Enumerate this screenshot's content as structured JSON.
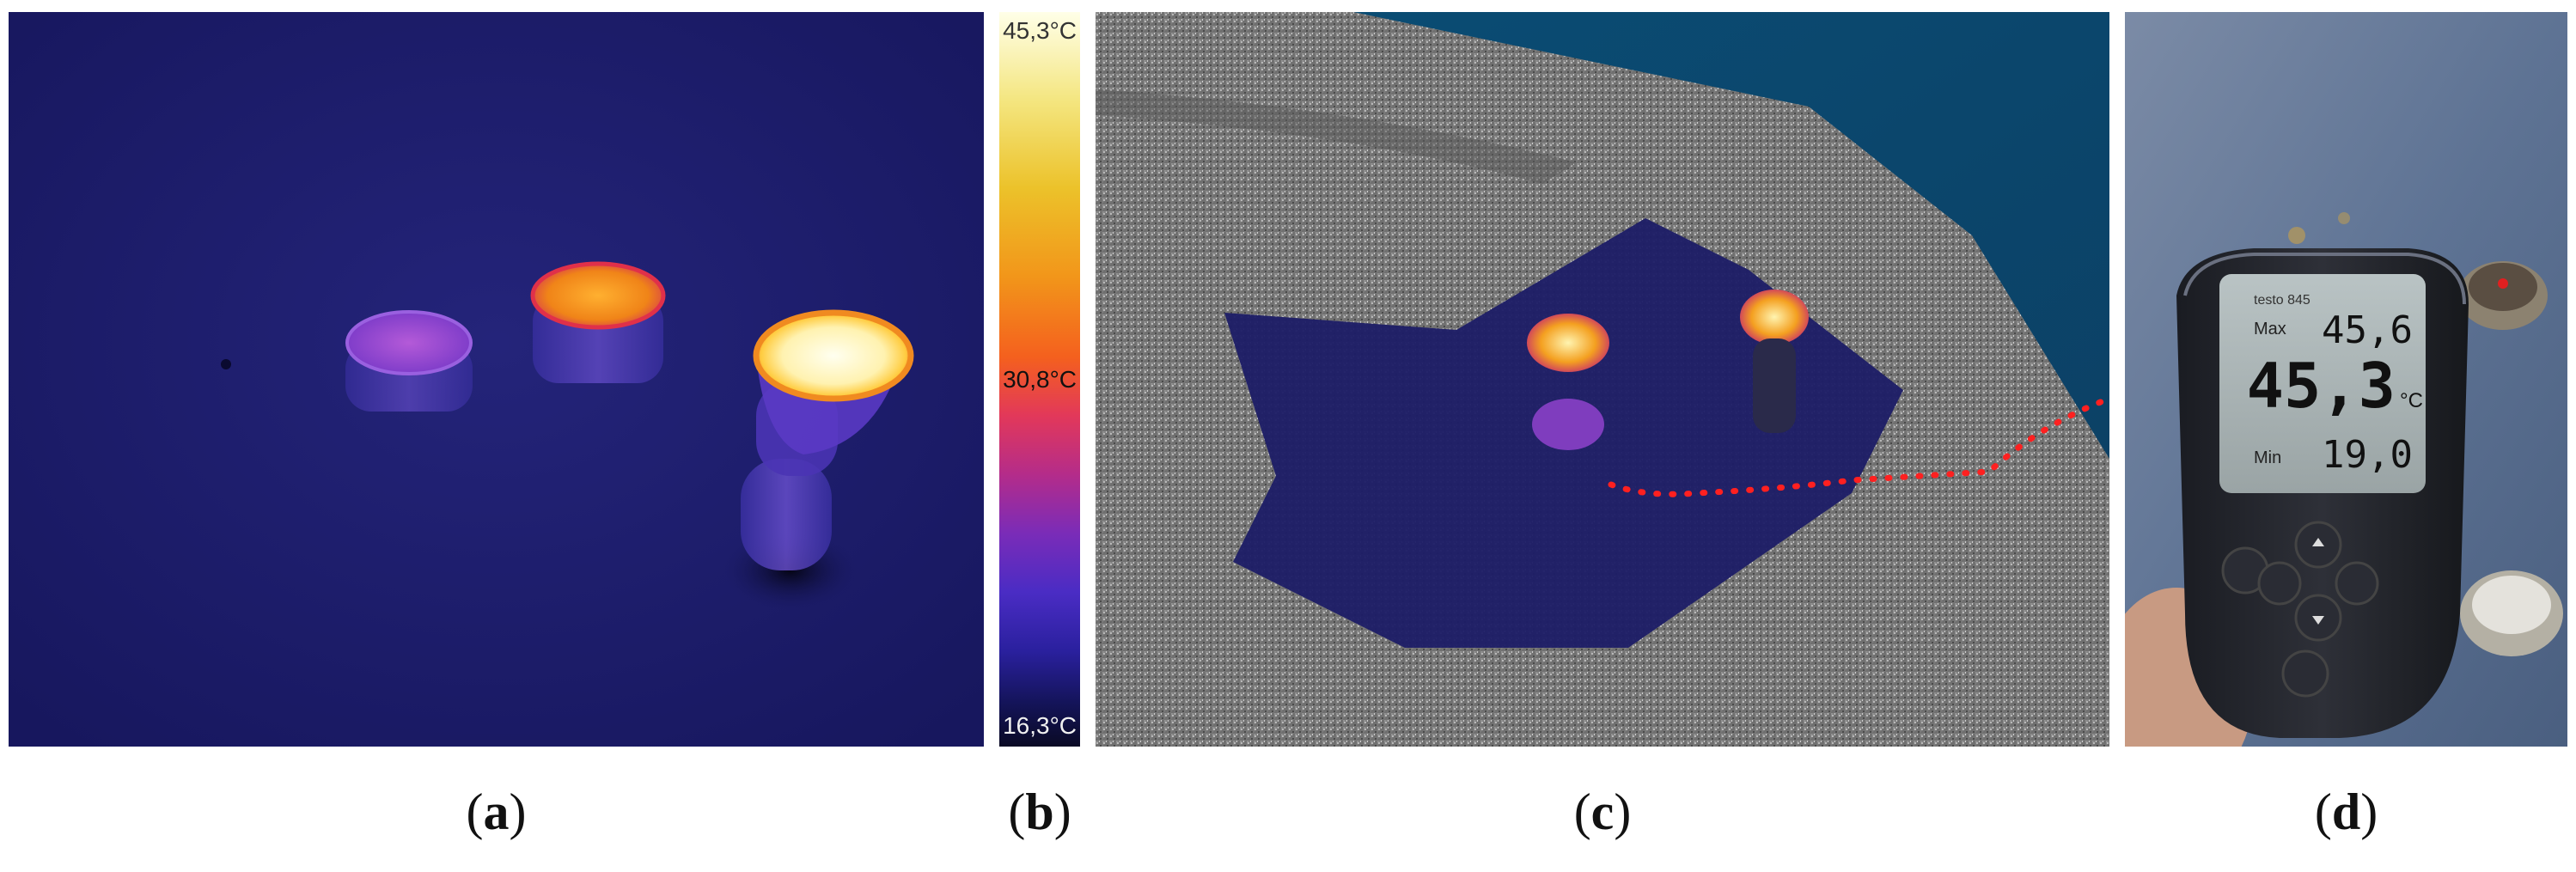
{
  "panels": {
    "a": {
      "label": "a",
      "icon": "thermal-image"
    },
    "b": {
      "label": "b",
      "scale": {
        "max": "45,3°C",
        "mid": "30,8°C",
        "min": "16,3°C"
      },
      "colors": [
        "#ffffe8",
        "#ecc22a",
        "#f4601e",
        "#b42c8a",
        "#4a2cc4",
        "#0a0a24"
      ]
    },
    "c": {
      "label": "c",
      "icon": "point-cloud-image"
    },
    "d": {
      "label": "d",
      "device": {
        "brand": "testo 845",
        "max_label": "Max",
        "max_value": "45,6",
        "reading": "45,3",
        "unit": "°C",
        "min_label": "Min",
        "min_value": "19,0"
      }
    }
  }
}
